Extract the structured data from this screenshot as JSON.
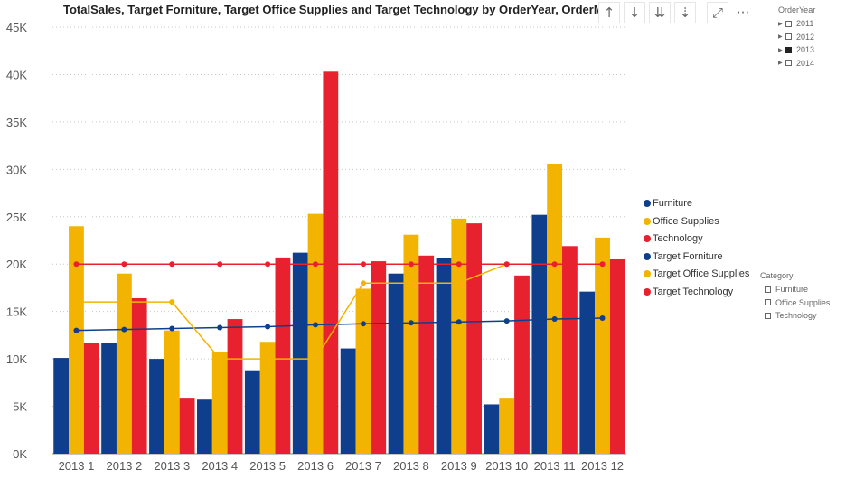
{
  "chart_data": {
    "type": "bar",
    "title": "TotalSales, Target Forniture, Target Office Supplies and Target Technology by OrderYear, OrderMo",
    "categories": [
      "2013 1",
      "2013 2",
      "2013 3",
      "2013 4",
      "2013 5",
      "2013 6",
      "2013 7",
      "2013 8",
      "2013 9",
      "2013 10",
      "2013 11",
      "2013 12"
    ],
    "ylim": [
      0,
      45000
    ],
    "y_ticks": [
      0,
      5000,
      10000,
      15000,
      20000,
      25000,
      30000,
      35000,
      40000,
      45000
    ],
    "y_tick_labels": [
      "0K",
      "5K",
      "10K",
      "15K",
      "20K",
      "25K",
      "30K",
      "35K",
      "40K",
      "45K"
    ],
    "grid": true,
    "legend_position": "right",
    "series": [
      {
        "name": "Furniture",
        "kind": "bar",
        "color": "#0F3F8C",
        "values": [
          10100,
          11700,
          10000,
          5700,
          8800,
          21200,
          11100,
          19000,
          20600,
          5200,
          25200,
          17100
        ]
      },
      {
        "name": "Office Supplies",
        "kind": "bar",
        "color": "#F2B400",
        "values": [
          24000,
          19000,
          13000,
          10700,
          11800,
          25300,
          17400,
          23100,
          24800,
          5900,
          30600,
          22800
        ]
      },
      {
        "name": "Technology",
        "kind": "bar",
        "color": "#E8212E",
        "values": [
          11700,
          16400,
          5900,
          14200,
          20700,
          40300,
          20300,
          20900,
          24300,
          18800,
          21900,
          20500
        ]
      },
      {
        "name": "Target Forniture",
        "kind": "line",
        "color": "#0F3F8C",
        "values": [
          13000,
          13100,
          13200,
          13300,
          13400,
          13600,
          13700,
          13800,
          13900,
          14000,
          14200,
          14300
        ]
      },
      {
        "name": "Target Office Supplies",
        "kind": "line",
        "color": "#F2B400",
        "values": [
          16000,
          16000,
          16000,
          10000,
          10000,
          10000,
          18000,
          18000,
          18000,
          20000,
          null,
          null
        ]
      },
      {
        "name": "Target Technology",
        "kind": "line",
        "color": "#E8212E",
        "values": [
          20000,
          20000,
          20000,
          20000,
          20000,
          20000,
          20000,
          20000,
          20000,
          20000,
          20000,
          20000
        ]
      }
    ]
  },
  "legend": {
    "items": [
      {
        "label": "Furniture",
        "color": "#0F3F8C"
      },
      {
        "label": "Office Supplies",
        "color": "#F2B400"
      },
      {
        "label": "Technology",
        "color": "#E8212E"
      },
      {
        "label": "Target Forniture",
        "color": "#0F3F8C"
      },
      {
        "label": "Target Office Supplies",
        "color": "#F2B400"
      },
      {
        "label": "Target Technology",
        "color": "#E8212E"
      }
    ]
  },
  "toolbar": {
    "drill_up_icon": "↑",
    "drill_down_icon": "↓",
    "expand_all_icon": "⇊",
    "expand_level_icon": "⇣",
    "focus_mode_icon": "⤢",
    "more_options_icon": "···"
  },
  "slicers": {
    "order_year": {
      "title": "OrderYear",
      "items": [
        {
          "label": "2011",
          "checked": false
        },
        {
          "label": "2012",
          "checked": false
        },
        {
          "label": "2013",
          "checked": true
        },
        {
          "label": "2014",
          "checked": false
        }
      ]
    },
    "category": {
      "title": "Category",
      "items": [
        {
          "label": "Furniture",
          "checked": false
        },
        {
          "label": "Office Supplies",
          "checked": false
        },
        {
          "label": "Technology",
          "checked": false
        }
      ]
    }
  }
}
